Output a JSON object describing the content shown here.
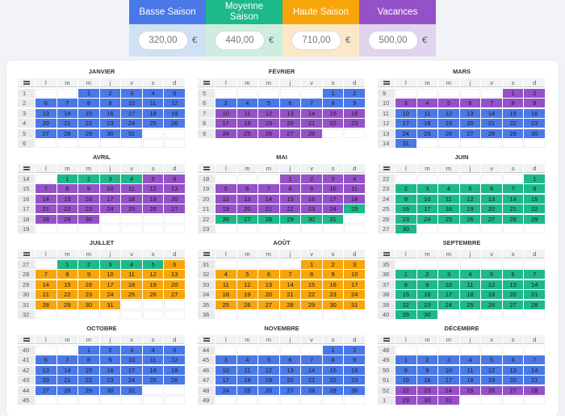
{
  "seasons": [
    {
      "name": "Basse Saison",
      "color": "#4a78e6",
      "light": "#cfe1f3",
      "price": "320,00"
    },
    {
      "name": "Moyenne Saison",
      "color": "#1db98a",
      "light": "#cdeedf",
      "price": "440,00"
    },
    {
      "name": "Haute Saison",
      "color": "#f7a50a",
      "light": "#fbe8c6",
      "price": "710,00"
    },
    {
      "name": "Vacances",
      "color": "#9551c8",
      "light": "#e0d4ee",
      "price": "500,00"
    }
  ],
  "currency": "€",
  "weekdays": [
    "l",
    "m",
    "m",
    "j",
    "v",
    "s",
    "d"
  ],
  "months": [
    {
      "name": "JANVIER",
      "rows": [
        {
          "week": 1,
          "days": [
            null,
            null,
            1,
            2,
            3,
            4,
            5
          ],
          "season": 0
        },
        {
          "week": 2,
          "days": [
            6,
            7,
            8,
            9,
            10,
            11,
            12
          ],
          "season": 0
        },
        {
          "week": 3,
          "days": [
            13,
            14,
            15,
            16,
            17,
            18,
            19
          ],
          "season": 0
        },
        {
          "week": 4,
          "days": [
            20,
            21,
            22,
            23,
            24,
            25,
            26
          ],
          "season": 0
        },
        {
          "week": 5,
          "days": [
            27,
            28,
            29,
            30,
            31,
            null,
            null
          ],
          "season": 0
        },
        {
          "week": 6,
          "days": []
        }
      ]
    },
    {
      "name": "FÉVRIER",
      "rows": [
        {
          "week": 5,
          "days": [
            null,
            null,
            null,
            null,
            null,
            1,
            2
          ],
          "season": 0
        },
        {
          "week": 6,
          "days": [
            3,
            4,
            5,
            6,
            7,
            8,
            9
          ],
          "season": 0
        },
        {
          "week": 7,
          "days": [
            10,
            11,
            12,
            13,
            14,
            15,
            16
          ],
          "season": 3
        },
        {
          "week": 8,
          "days": [
            17,
            18,
            19,
            20,
            21,
            22,
            23
          ],
          "season": 3
        },
        {
          "week": 9,
          "days": [
            24,
            25,
            26,
            27,
            28,
            null,
            null
          ],
          "season": 3
        }
      ]
    },
    {
      "name": "MARS",
      "rows": [
        {
          "week": 9,
          "days": [
            null,
            null,
            null,
            null,
            null,
            1,
            2
          ],
          "season": 3
        },
        {
          "week": 10,
          "days": [
            3,
            4,
            5,
            6,
            7,
            8,
            9
          ],
          "season": 3
        },
        {
          "week": 11,
          "days": [
            10,
            11,
            12,
            13,
            14,
            15,
            16
          ],
          "season": 0
        },
        {
          "week": 12,
          "days": [
            17,
            18,
            19,
            20,
            21,
            22,
            23
          ],
          "season": 0
        },
        {
          "week": 13,
          "days": [
            24,
            25,
            26,
            27,
            28,
            29,
            30
          ],
          "season": 0
        },
        {
          "week": 14,
          "days": [
            31,
            null,
            null,
            null,
            null,
            null,
            null
          ],
          "season": 0
        }
      ]
    },
    {
      "name": "AVRIL",
      "rows": [
        {
          "week": 14,
          "days": [
            null,
            1,
            2,
            3,
            4,
            5,
            6
          ],
          "season": [
            null,
            1,
            1,
            1,
            1,
            3,
            3
          ]
        },
        {
          "week": 15,
          "days": [
            7,
            8,
            9,
            10,
            11,
            12,
            13
          ],
          "season": 3
        },
        {
          "week": 16,
          "days": [
            14,
            15,
            16,
            17,
            18,
            19,
            20
          ],
          "season": 3
        },
        {
          "week": 17,
          "days": [
            21,
            22,
            23,
            24,
            25,
            26,
            27
          ],
          "season": 3
        },
        {
          "week": 18,
          "days": [
            28,
            29,
            30,
            null,
            null,
            null,
            null
          ],
          "season": 3
        },
        {
          "week": 19,
          "days": []
        }
      ]
    },
    {
      "name": "MAI",
      "rows": [
        {
          "week": 18,
          "days": [
            null,
            null,
            null,
            1,
            2,
            3,
            4
          ],
          "season": 3
        },
        {
          "week": 19,
          "days": [
            5,
            6,
            7,
            8,
            9,
            10,
            11
          ],
          "season": 3
        },
        {
          "week": 20,
          "days": [
            12,
            13,
            14,
            15,
            16,
            17,
            18
          ],
          "season": 3
        },
        {
          "week": 21,
          "days": [
            19,
            20,
            21,
            22,
            23,
            24,
            25
          ],
          "season": [
            3,
            3,
            3,
            3,
            3,
            3,
            1
          ]
        },
        {
          "week": 22,
          "days": [
            26,
            27,
            28,
            29,
            30,
            31,
            null
          ],
          "season": 1
        },
        {
          "week": 23,
          "days": []
        }
      ]
    },
    {
      "name": "JUIN",
      "rows": [
        {
          "week": 22,
          "days": [
            null,
            null,
            null,
            null,
            null,
            null,
            1
          ],
          "season": 1
        },
        {
          "week": 23,
          "days": [
            2,
            3,
            4,
            5,
            6,
            7,
            8
          ],
          "season": 1
        },
        {
          "week": 24,
          "days": [
            9,
            10,
            11,
            12,
            13,
            14,
            15
          ],
          "season": 1
        },
        {
          "week": 25,
          "days": [
            16,
            17,
            18,
            19,
            20,
            21,
            22
          ],
          "season": 1
        },
        {
          "week": 26,
          "days": [
            23,
            24,
            25,
            26,
            27,
            28,
            29
          ],
          "season": 1
        },
        {
          "week": 27,
          "days": [
            30,
            null,
            null,
            null,
            null,
            null,
            null
          ],
          "season": 1
        }
      ]
    },
    {
      "name": "JUILLET",
      "rows": [
        {
          "week": 27,
          "days": [
            null,
            1,
            2,
            3,
            4,
            5,
            6
          ],
          "season": [
            null,
            1,
            1,
            1,
            1,
            1,
            2
          ]
        },
        {
          "week": 28,
          "days": [
            7,
            8,
            9,
            10,
            11,
            12,
            13
          ],
          "season": 2
        },
        {
          "week": 29,
          "days": [
            14,
            15,
            16,
            17,
            18,
            19,
            20
          ],
          "season": 2
        },
        {
          "week": 30,
          "days": [
            21,
            22,
            23,
            24,
            25,
            26,
            27
          ],
          "season": 2
        },
        {
          "week": 31,
          "days": [
            28,
            29,
            30,
            31,
            null,
            null,
            null
          ],
          "season": 2
        },
        {
          "week": 32,
          "days": []
        }
      ]
    },
    {
      "name": "AOÛT",
      "rows": [
        {
          "week": 31,
          "days": [
            null,
            null,
            null,
            null,
            1,
            2,
            3
          ],
          "season": 2
        },
        {
          "week": 32,
          "days": [
            4,
            5,
            6,
            7,
            8,
            9,
            10
          ],
          "season": 2
        },
        {
          "week": 33,
          "days": [
            11,
            12,
            13,
            14,
            15,
            16,
            17
          ],
          "season": 2
        },
        {
          "week": 34,
          "days": [
            18,
            19,
            20,
            21,
            22,
            23,
            24
          ],
          "season": 2
        },
        {
          "week": 35,
          "days": [
            25,
            26,
            27,
            28,
            29,
            30,
            31
          ],
          "season": 2
        },
        {
          "week": 36,
          "days": []
        }
      ]
    },
    {
      "name": "SEPTEMBRE",
      "rows": [
        {
          "week": 35,
          "days": []
        },
        {
          "week": 36,
          "days": [
            1,
            2,
            3,
            4,
            5,
            6,
            7
          ],
          "season": 1
        },
        {
          "week": 37,
          "days": [
            8,
            9,
            10,
            11,
            12,
            13,
            14
          ],
          "season": 1
        },
        {
          "week": 38,
          "days": [
            15,
            16,
            17,
            18,
            19,
            20,
            21
          ],
          "season": 1
        },
        {
          "week": 39,
          "days": [
            22,
            23,
            24,
            25,
            26,
            27,
            28
          ],
          "season": 1
        },
        {
          "week": 40,
          "days": [
            29,
            30,
            null,
            null,
            null,
            null,
            null
          ],
          "season": 1
        }
      ]
    },
    {
      "name": "OCTOBRE",
      "rows": [
        {
          "week": 40,
          "days": [
            null,
            null,
            1,
            2,
            3,
            4,
            5
          ],
          "season": 0
        },
        {
          "week": 41,
          "days": [
            6,
            7,
            8,
            9,
            10,
            11,
            12
          ],
          "season": 0
        },
        {
          "week": 42,
          "days": [
            13,
            14,
            15,
            16,
            17,
            18,
            19
          ],
          "season": 0
        },
        {
          "week": 43,
          "days": [
            20,
            21,
            22,
            23,
            24,
            25,
            26
          ],
          "season": 0
        },
        {
          "week": 44,
          "days": [
            27,
            28,
            29,
            30,
            31,
            null,
            null
          ],
          "season": 0
        },
        {
          "week": 45,
          "days": []
        }
      ]
    },
    {
      "name": "NOVEMBRE",
      "rows": [
        {
          "week": 44,
          "days": [
            null,
            null,
            null,
            null,
            null,
            1,
            2
          ],
          "season": 0
        },
        {
          "week": 45,
          "days": [
            3,
            4,
            5,
            6,
            7,
            8,
            9
          ],
          "season": 0
        },
        {
          "week": 46,
          "days": [
            10,
            11,
            12,
            13,
            14,
            15,
            16
          ],
          "season": 0
        },
        {
          "week": 47,
          "days": [
            17,
            18,
            19,
            20,
            21,
            22,
            23
          ],
          "season": 0
        },
        {
          "week": 48,
          "days": [
            24,
            25,
            26,
            27,
            28,
            29,
            30
          ],
          "season": 0
        },
        {
          "week": 49,
          "days": []
        }
      ]
    },
    {
      "name": "DÉCEMBRE",
      "rows": [
        {
          "week": 48,
          "days": []
        },
        {
          "week": 49,
          "days": [
            1,
            2,
            3,
            4,
            5,
            6,
            7
          ],
          "season": 0
        },
        {
          "week": 50,
          "days": [
            8,
            9,
            10,
            11,
            12,
            13,
            14
          ],
          "season": 0
        },
        {
          "week": 51,
          "days": [
            15,
            16,
            17,
            18,
            19,
            20,
            21
          ],
          "season": 0
        },
        {
          "week": 52,
          "days": [
            22,
            23,
            24,
            25,
            26,
            27,
            28
          ],
          "season": 3
        },
        {
          "week": 1,
          "days": [
            29,
            30,
            31,
            null,
            null,
            null,
            null
          ],
          "season": 3
        }
      ]
    }
  ]
}
